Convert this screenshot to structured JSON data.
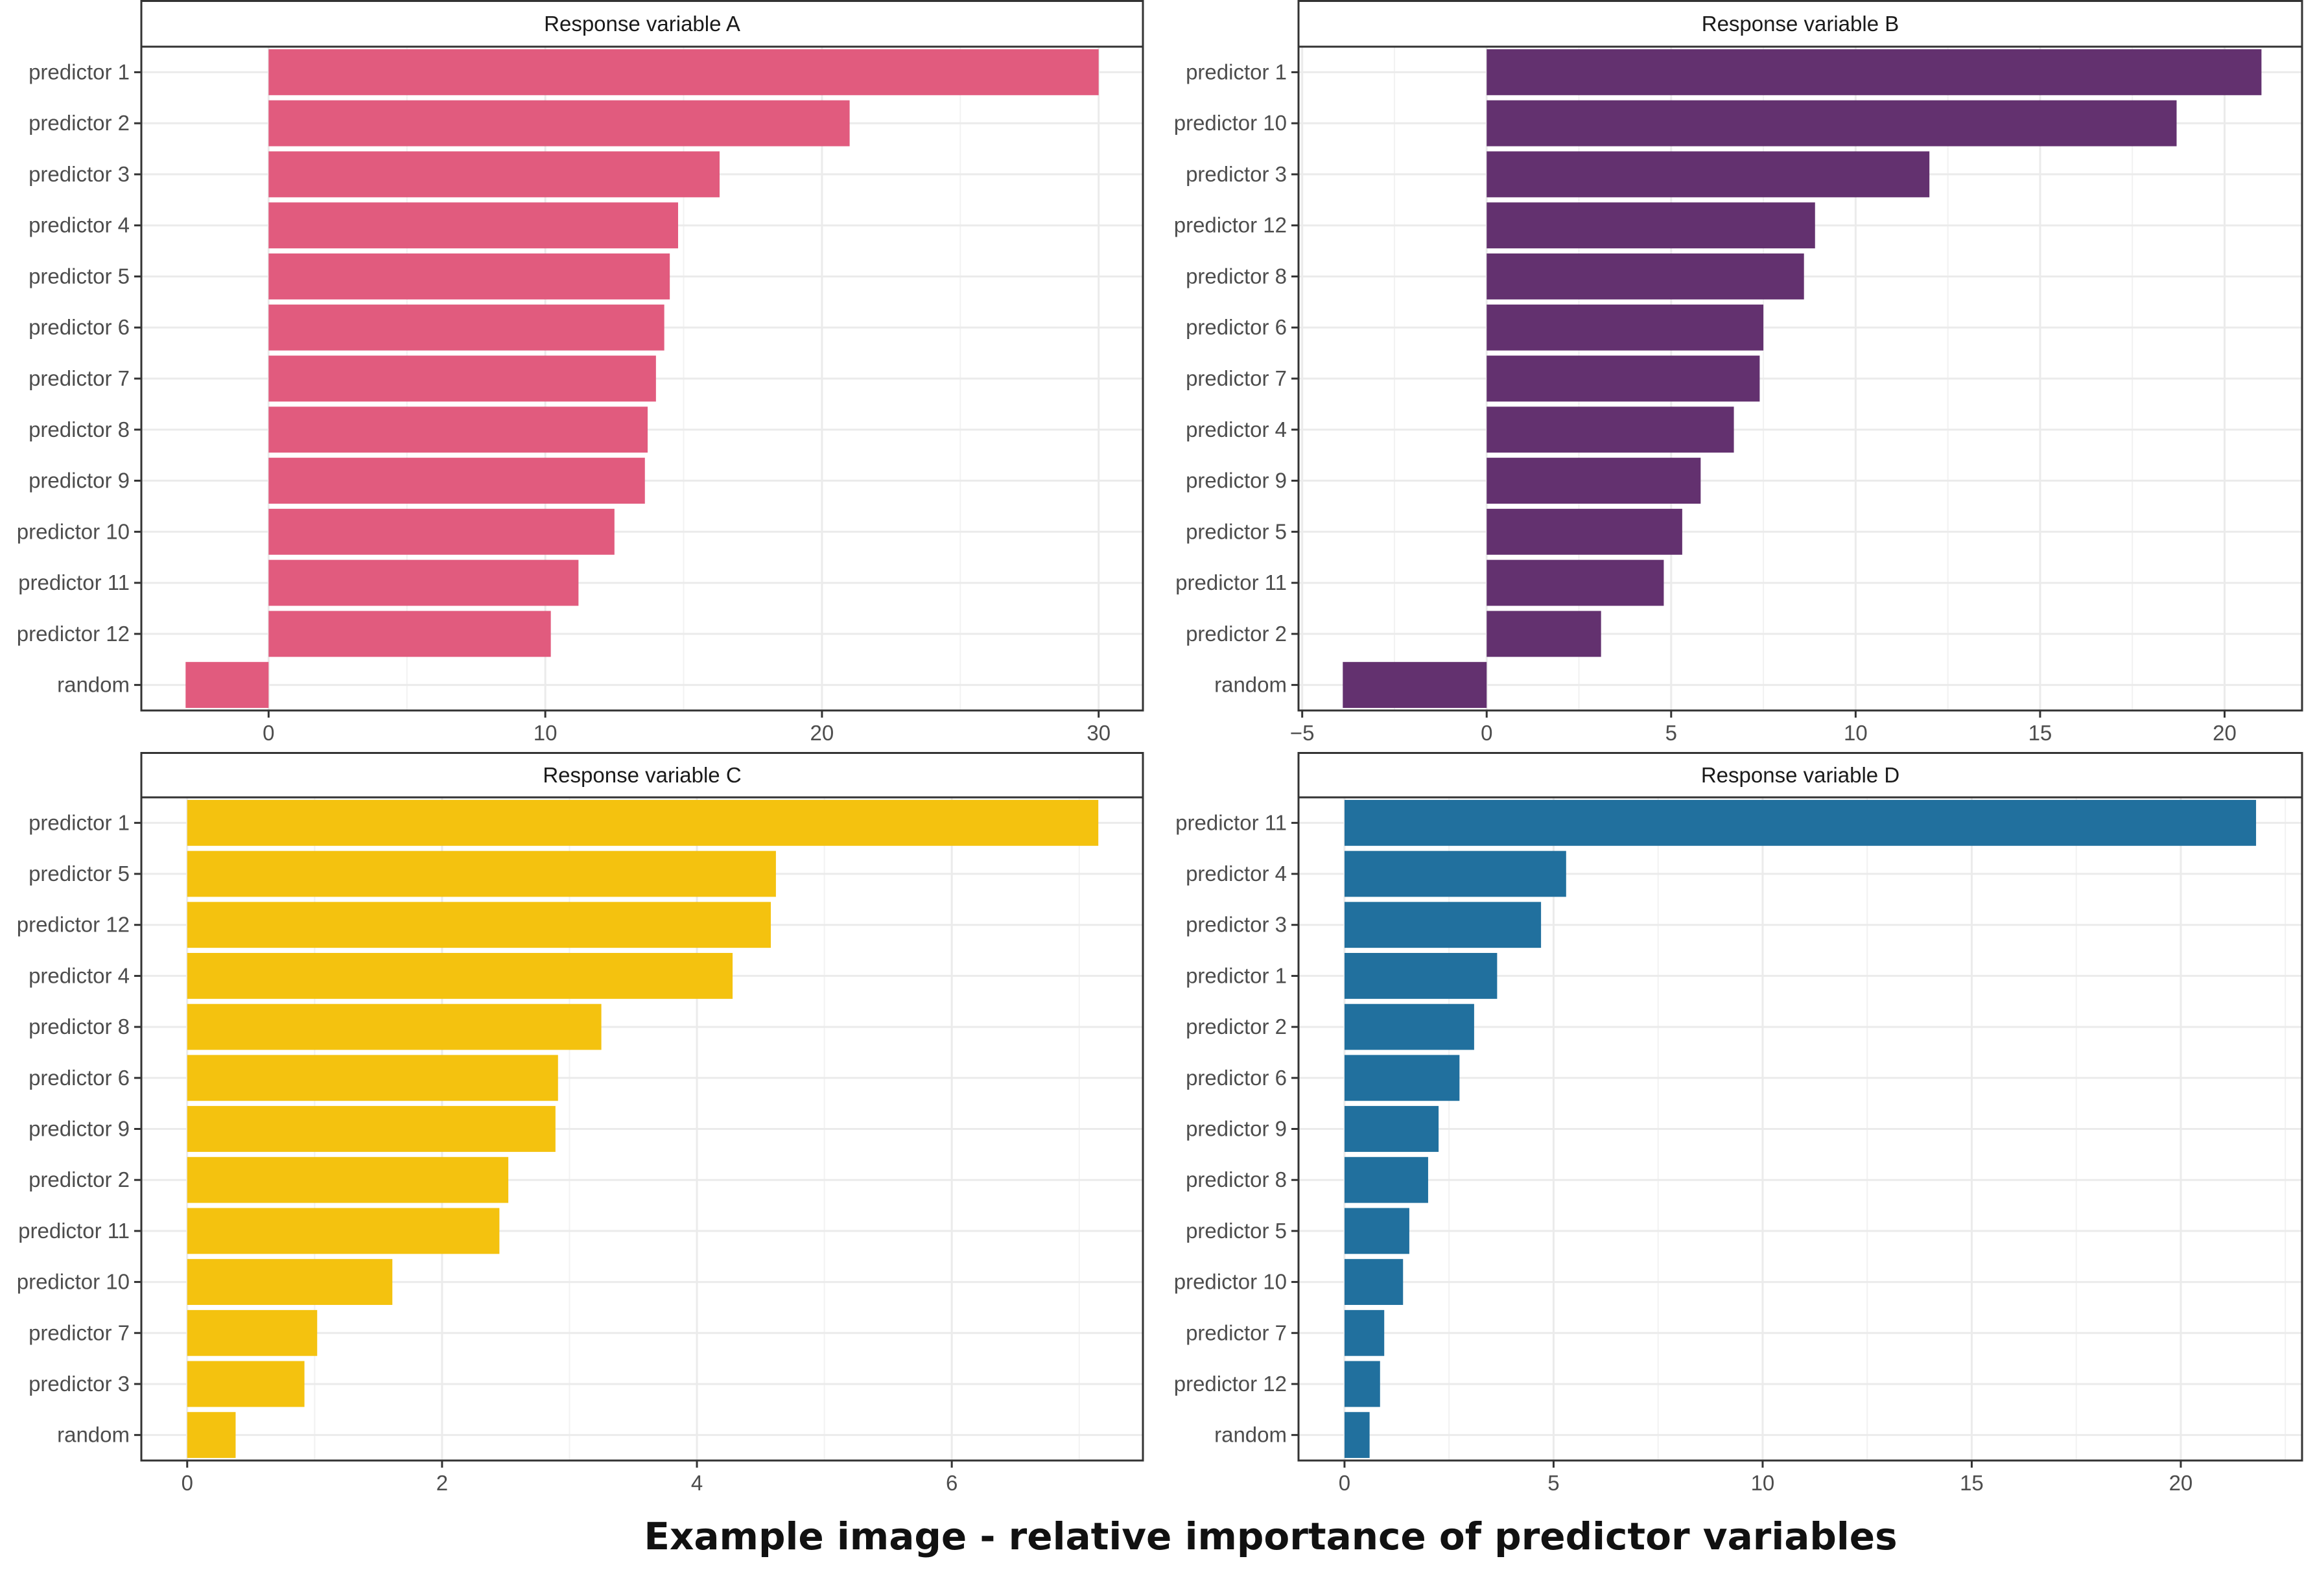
{
  "caption": "Example image - relative importance of predictor variables",
  "chart_data": [
    {
      "type": "bar",
      "orientation": "horizontal",
      "title": "Response variable A",
      "color": "#E15B7E",
      "xlim": [
        -4.6,
        31.6
      ],
      "xticks": [
        0,
        10,
        20,
        30
      ],
      "grid": true,
      "categories": [
        "predictor 1",
        "predictor 2",
        "predictor 3",
        "predictor 4",
        "predictor 5",
        "predictor 6",
        "predictor 7",
        "predictor 8",
        "predictor 9",
        "predictor 10",
        "predictor 11",
        "predictor 12",
        "random"
      ],
      "values": [
        30.0,
        21.0,
        16.3,
        14.8,
        14.5,
        14.3,
        14.0,
        13.7,
        13.6,
        12.5,
        11.2,
        10.2,
        -3.0
      ]
    },
    {
      "type": "bar",
      "orientation": "horizontal",
      "title": "Response variable B",
      "color": "#63316F",
      "xlim": [
        -5.1,
        22.1
      ],
      "xticks": [
        -5,
        0,
        5,
        10,
        15,
        20
      ],
      "grid": true,
      "categories": [
        "predictor 1",
        "predictor 10",
        "predictor 3",
        "predictor 12",
        "predictor 8",
        "predictor 6",
        "predictor 7",
        "predictor 4",
        "predictor 9",
        "predictor 5",
        "predictor 11",
        "predictor 2",
        "random"
      ],
      "values": [
        21.0,
        18.7,
        12.0,
        8.9,
        8.6,
        7.5,
        7.4,
        6.7,
        5.8,
        5.3,
        4.8,
        3.1,
        -3.9
      ]
    },
    {
      "type": "bar",
      "orientation": "horizontal",
      "title": "Response variable C",
      "color": "#F4C20F",
      "xlim": [
        -0.36,
        7.5
      ],
      "xticks": [
        0,
        2,
        4,
        6
      ],
      "grid": true,
      "categories": [
        "predictor 1",
        "predictor 5",
        "predictor 12",
        "predictor 4",
        "predictor 8",
        "predictor 6",
        "predictor 9",
        "predictor 2",
        "predictor 11",
        "predictor 10",
        "predictor 7",
        "predictor 3",
        "random"
      ],
      "values": [
        7.15,
        4.62,
        4.58,
        4.28,
        3.25,
        2.91,
        2.89,
        2.52,
        2.45,
        1.61,
        1.02,
        0.92,
        0.38
      ]
    },
    {
      "type": "bar",
      "orientation": "horizontal",
      "title": "Response variable D",
      "color": "#21709E",
      "xlim": [
        -1.1,
        22.9
      ],
      "xticks": [
        0,
        5,
        10,
        15,
        20
      ],
      "grid": true,
      "categories": [
        "predictor 11",
        "predictor 4",
        "predictor 3",
        "predictor 1",
        "predictor 2",
        "predictor 6",
        "predictor 9",
        "predictor 8",
        "predictor 5",
        "predictor 10",
        "predictor 7",
        "predictor 12",
        "random"
      ],
      "values": [
        21.8,
        5.3,
        4.7,
        3.65,
        3.1,
        2.75,
        2.25,
        2.0,
        1.55,
        1.4,
        0.95,
        0.85,
        0.6
      ]
    }
  ]
}
